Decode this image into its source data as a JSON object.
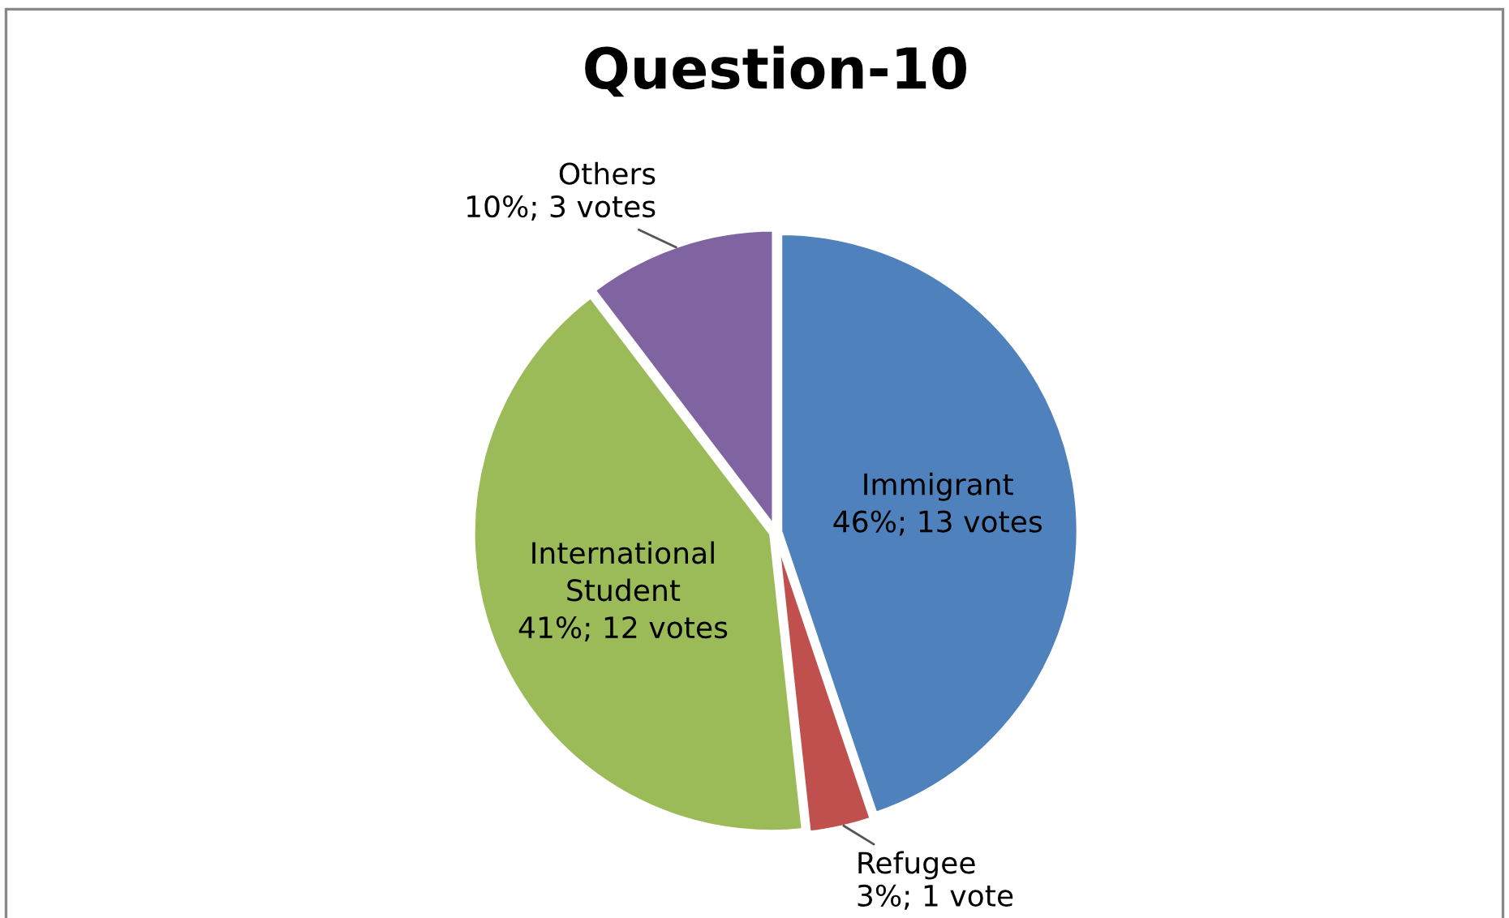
{
  "chart_data": {
    "type": "pie",
    "title": "Question-10",
    "categories": [
      "Immigrant",
      "Refugee",
      "International Student",
      "Others"
    ],
    "values": [
      13,
      1,
      12,
      3
    ],
    "value_labels": [
      "46%; 13 votes",
      "3%; 1 vote",
      "41%; 12 votes",
      "10%; 3 votes"
    ],
    "colors": [
      "#4f81bd",
      "#c0504d",
      "#9bbb59",
      "#8064a2"
    ],
    "legend": false
  }
}
